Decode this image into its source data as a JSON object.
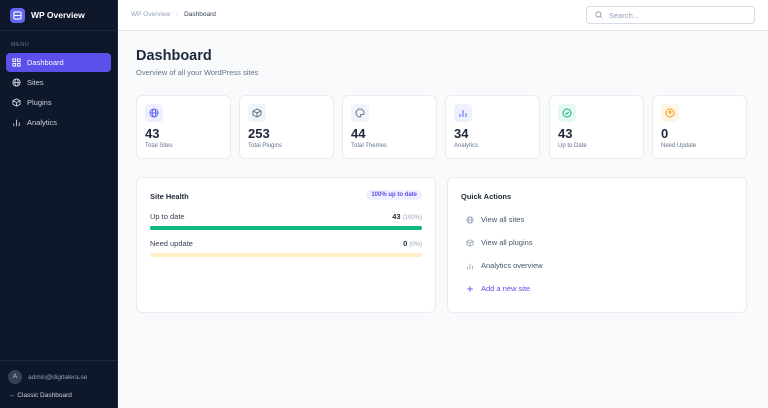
{
  "app": {
    "title": "WP Overview"
  },
  "sidebar": {
    "menu_heading": "MENU",
    "items": [
      {
        "label": "Dashboard",
        "icon": "grid-icon",
        "active": true
      },
      {
        "label": "Sites",
        "icon": "globe-icon"
      },
      {
        "label": "Plugins",
        "icon": "package-icon"
      },
      {
        "label": "Analytics",
        "icon": "bar-chart-icon"
      }
    ],
    "user": {
      "avatar": "A",
      "email": "admin@digitalera.se"
    },
    "classic_link": "← Classic Dashboard"
  },
  "header": {
    "breadcrumb": [
      "WP Overview",
      "Dashboard"
    ],
    "search_placeholder": "Search..."
  },
  "page": {
    "title": "Dashboard",
    "subtitle": "Overview of all your WordPress sites"
  },
  "stats": [
    {
      "value": "43",
      "label": "Total Sites",
      "icon": "globe-icon",
      "color": "#6366f1",
      "bg": "#eef0ff"
    },
    {
      "value": "253",
      "label": "Total Plugins",
      "icon": "package-icon",
      "color": "#64748b",
      "bg": "#f1f5f9"
    },
    {
      "value": "44",
      "label": "Total Themes",
      "icon": "palette-icon",
      "color": "#64748b",
      "bg": "#f1f5f9"
    },
    {
      "value": "34",
      "label": "Analytics",
      "icon": "bar-chart-icon",
      "color": "#6366f1",
      "bg": "#eef0ff"
    },
    {
      "value": "43",
      "label": "Up to Date",
      "icon": "check-circle-icon",
      "color": "#10b981",
      "bg": "#e7f8f1"
    },
    {
      "value": "0",
      "label": "Need Update",
      "icon": "arrow-up-circle-icon",
      "color": "#f59e0b",
      "bg": "#fef6e4"
    }
  ],
  "site_health": {
    "title": "Site Health",
    "badge": "100% up to date",
    "rows": [
      {
        "label": "Up to date",
        "count": "43",
        "pct": "(100%)",
        "fraction": 1.0,
        "color": "#10b981",
        "track": "#10b981"
      },
      {
        "label": "Need update",
        "count": "0",
        "pct": "(0%)",
        "fraction": 0,
        "color": "#f59e0b",
        "track": "#fdf0c4"
      }
    ]
  },
  "quick_actions": {
    "title": "Quick Actions",
    "items": [
      {
        "label": "View all sites",
        "icon": "globe-icon"
      },
      {
        "label": "View all plugins",
        "icon": "package-icon"
      },
      {
        "label": "Analytics overview",
        "icon": "bar-chart-icon"
      },
      {
        "label": "Add a new site",
        "icon": "plus-icon",
        "accent": "#5b50ea"
      }
    ]
  }
}
